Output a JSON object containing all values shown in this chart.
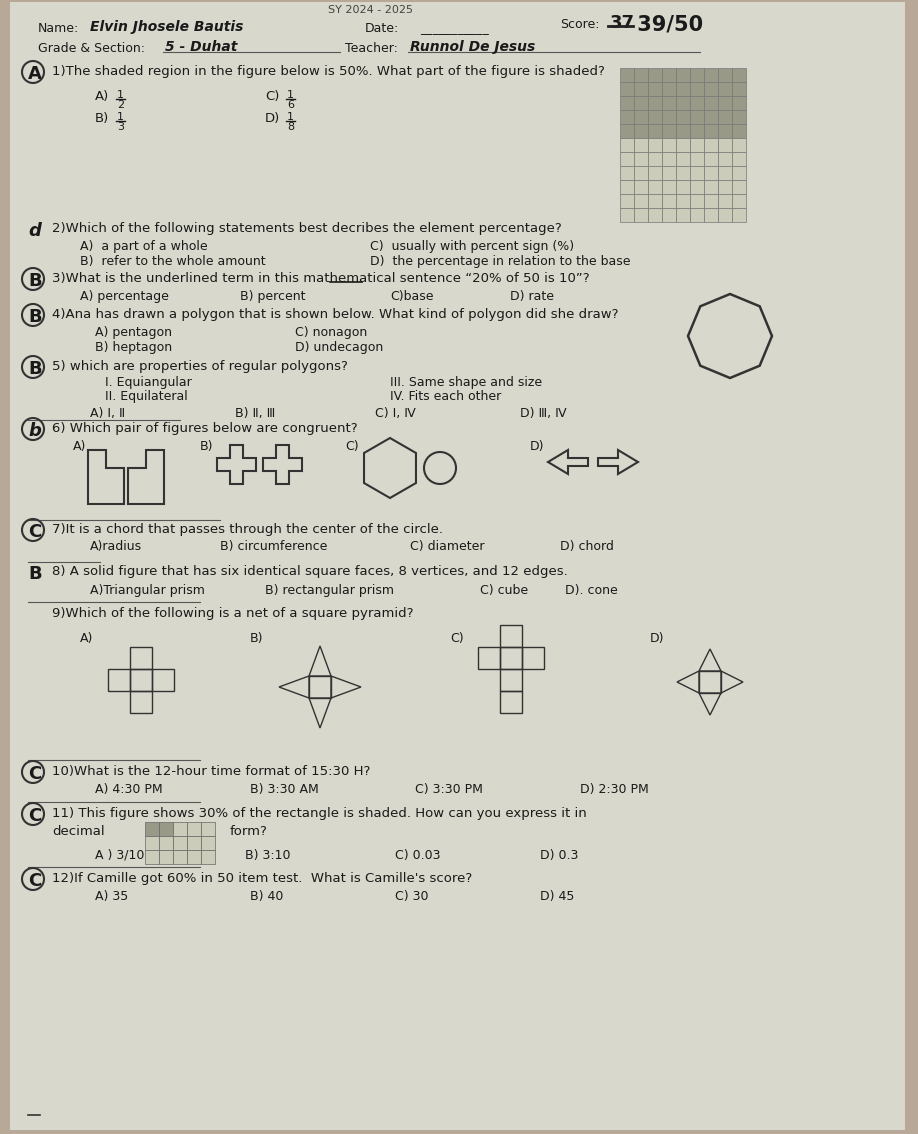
{
  "bg_color": "#b8a898",
  "paper_color": "#d8d8cc",
  "title_top": "SY 2024 - 2025",
  "q1_text": "1)The shaded region in the figure below is 50%. What part of the figure is shaded?",
  "q2_text": "2)Which of the following statements best decribes the element percentage?",
  "q2_a": "A)  a part of a whole",
  "q2_b": "B)  refer to the whole amount",
  "q2_c": "C)  usually with percent sign (%)",
  "q2_d": "D)  the percentage in relation to the base",
  "q3_text": "3)What is the underlined term in this mathematical sentence “20% of 50 is 10”?",
  "q3_a": "A) percentage",
  "q3_b": "B) percent",
  "q3_c": "C)base",
  "q3_d": "D) rate",
  "q4_text": "4)Ana has drawn a polygon that is shown below. What kind of polygon did she draw?",
  "q4_a": "A) pentagon",
  "q4_b": "B) heptagon",
  "q4_c": "C) nonagon",
  "q4_d": "D) undecagon",
  "q5_text": "5) which are properties of regular polygons?",
  "q5_a": "A) I, Ⅱ",
  "q5_b": "B) Ⅱ, Ⅲ",
  "q5_c": "C) I, Ⅳ",
  "q5_d": "D) Ⅲ, Ⅳ",
  "q6_text": "6) Which pair of figures below are congruent?",
  "q7_text": "7)It is a chord that passes through the center of the circle.",
  "q7_a": "A)radius",
  "q7_b": "B) circumference",
  "q7_c": "C) diameter",
  "q7_d": "D) chord",
  "q8_text": "8) A solid figure that has six identical square faces, 8 vertices, and 12 edges.",
  "q8_a": "A)Triangular prism",
  "q8_b": "B) rectangular prism",
  "q8_c": "C) cube",
  "q8_d": "D). cone",
  "q9_text": "9)Which of the following is a net of a square pyramid?",
  "q10_text": "10)What is the 12-hour time format of 15:30 H?",
  "q10_a": "A) 4:30 PM",
  "q10_b": "B) 3:30 AM",
  "q10_c": "C) 3:30 PM",
  "q10_d": "D) 2:30 PM",
  "q11_text": "11) This figure shows 30% of the rectangle is shaded. How can you express it in",
  "q11_text2": "decimal",
  "q11_text3": "form?",
  "q11_a": "A ) 3/10",
  "q11_b": "B) 3:10",
  "q11_c": "C) 0.03",
  "q11_d": "D) 0.3",
  "q12_text": "12)If Camille got 60% in 50 item test.  What is Camille's score?",
  "q12_a": "A) 35",
  "q12_b": "B) 40",
  "q12_c": "C) 30",
  "q12_d": "D) 45"
}
